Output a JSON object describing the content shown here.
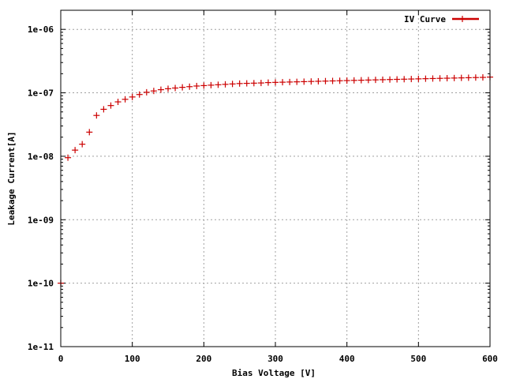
{
  "chart_data": {
    "type": "scatter",
    "xlabel": "Bias Voltage [V]",
    "ylabel": "Leakage Current[A]",
    "xlim": [
      0,
      600
    ],
    "ylim": [
      1e-11,
      2e-06
    ],
    "yscale": "log",
    "grid": true,
    "legend_position": "top-right",
    "x_ticks": [
      {
        "value": 0,
        "label": "0"
      },
      {
        "value": 100,
        "label": "100"
      },
      {
        "value": 200,
        "label": "200"
      },
      {
        "value": 300,
        "label": "300"
      },
      {
        "value": 400,
        "label": "400"
      },
      {
        "value": 500,
        "label": "500"
      },
      {
        "value": 600,
        "label": "600"
      }
    ],
    "y_ticks": [
      {
        "value": 1e-11,
        "label": "1e-11"
      },
      {
        "value": 1e-10,
        "label": "1e-10"
      },
      {
        "value": 1e-09,
        "label": "1e-09"
      },
      {
        "value": 1e-08,
        "label": "1e-08"
      },
      {
        "value": 1e-07,
        "label": "1e-07"
      },
      {
        "value": 1e-06,
        "label": "1e-06"
      }
    ],
    "series": [
      {
        "name": "IV Curve",
        "color": "#cc0000",
        "marker": "plus",
        "x": [
          0,
          10,
          20,
          30,
          40,
          50,
          60,
          70,
          80,
          90,
          100,
          110,
          120,
          130,
          140,
          150,
          160,
          170,
          180,
          190,
          200,
          210,
          220,
          230,
          240,
          250,
          260,
          270,
          280,
          290,
          300,
          310,
          320,
          330,
          340,
          350,
          360,
          370,
          380,
          390,
          400,
          410,
          420,
          430,
          440,
          450,
          460,
          470,
          480,
          490,
          500,
          510,
          520,
          530,
          540,
          550,
          560,
          570,
          580,
          590,
          600
        ],
        "y": [
          1e-10,
          9.5e-09,
          1.25e-08,
          1.55e-08,
          2.4e-08,
          4.4e-08,
          5.5e-08,
          6.3e-08,
          7.2e-08,
          7.9e-08,
          8.6e-08,
          9.4e-08,
          1.02e-07,
          1.07e-07,
          1.12e-07,
          1.16e-07,
          1.19e-07,
          1.22e-07,
          1.25e-07,
          1.28e-07,
          1.3e-07,
          1.32e-07,
          1.34e-07,
          1.36e-07,
          1.38e-07,
          1.4e-07,
          1.41e-07,
          1.42e-07,
          1.43e-07,
          1.45e-07,
          1.46e-07,
          1.47e-07,
          1.48e-07,
          1.49e-07,
          1.5e-07,
          1.51e-07,
          1.52e-07,
          1.53e-07,
          1.54e-07,
          1.55e-07,
          1.56e-07,
          1.57e-07,
          1.58e-07,
          1.59e-07,
          1.6e-07,
          1.61e-07,
          1.62e-07,
          1.63e-07,
          1.64e-07,
          1.65e-07,
          1.66e-07,
          1.67e-07,
          1.68e-07,
          1.69e-07,
          1.7e-07,
          1.71e-07,
          1.72e-07,
          1.73e-07,
          1.74e-07,
          1.75e-07,
          1.77e-07
        ]
      }
    ]
  }
}
